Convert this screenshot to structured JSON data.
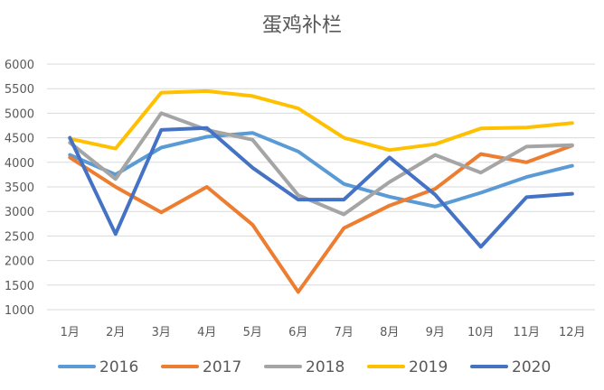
{
  "chart_data": {
    "type": "line",
    "title": "蛋鸡补栏",
    "xlabel": "",
    "ylabel": "",
    "categories": [
      "1月",
      "2月",
      "3月",
      "4月",
      "5月",
      "6月",
      "7月",
      "8月",
      "9月",
      "10月",
      "11月",
      "12月"
    ],
    "ylim": [
      1000,
      6000
    ],
    "yticks": [
      1000,
      1500,
      2000,
      2500,
      3000,
      3500,
      4000,
      4500,
      5000,
      5500,
      6000
    ],
    "grid": true,
    "legend_position": "bottom",
    "series": [
      {
        "name": "2016",
        "color": "#5b9bd5",
        "values": [
          4150,
          3750,
          4300,
          4520,
          4600,
          4220,
          3560,
          3300,
          3100,
          3380,
          3700,
          3930
        ]
      },
      {
        "name": "2017",
        "color": "#ed7d31",
        "values": [
          4100,
          3500,
          2980,
          3500,
          2730,
          1360,
          2660,
          3120,
          3460,
          4170,
          4000,
          4340
        ]
      },
      {
        "name": "2018",
        "color": "#a5a5a5",
        "values": [
          4400,
          3660,
          5000,
          4660,
          4460,
          3330,
          2940,
          3600,
          4150,
          3790,
          4320,
          4350
        ]
      },
      {
        "name": "2019",
        "color": "#ffc000",
        "values": [
          4480,
          4280,
          5420,
          5450,
          5350,
          5100,
          4500,
          4250,
          4370,
          4690,
          4710,
          4800
        ]
      },
      {
        "name": "2020",
        "color": "#4472c4",
        "values": [
          4500,
          2540,
          4660,
          4700,
          3890,
          3240,
          3240,
          4100,
          3340,
          2280,
          3290,
          3360
        ]
      }
    ]
  }
}
